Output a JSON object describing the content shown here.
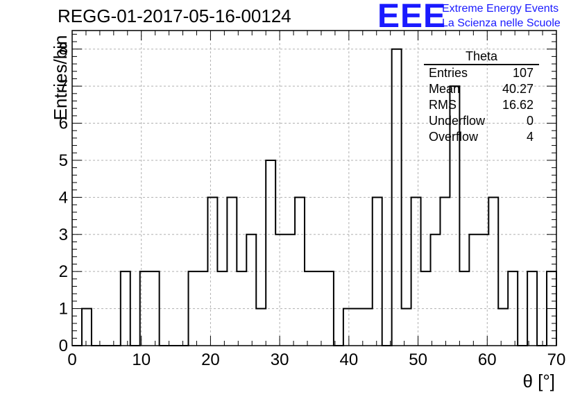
{
  "header": {
    "title": "REGG-01-2017-05-16-00124",
    "logo_text": "EEE",
    "logo_line1": "Extreme Energy Events",
    "logo_line2": "La Scienza nelle Scuole"
  },
  "stats_box": {
    "title": "Theta",
    "rows": [
      {
        "label": "Entries",
        "value": "107"
      },
      {
        "label": "Mean",
        "value": "40.27"
      },
      {
        "label": "RMS",
        "value": "16.62"
      },
      {
        "label": "Underflow",
        "value": "0"
      },
      {
        "label": "Overflow",
        "value": "4"
      }
    ]
  },
  "colors": {
    "line": "#000000",
    "grid": "#b0b0b0",
    "logo": "#1a1aff"
  },
  "chart_data": {
    "type": "bar",
    "style": "step-histogram",
    "title": "REGG-01-2017-05-16-00124",
    "xlabel": "θ [°]",
    "ylabel": "Entries/bin",
    "xlim": [
      0,
      70
    ],
    "ylim": [
      0,
      8.5
    ],
    "bin_width": 1.4,
    "bin_edges_start": 0,
    "x_ticks": [
      "0",
      "10",
      "20",
      "30",
      "40",
      "50",
      "60",
      "70"
    ],
    "y_ticks": [
      "0",
      "1",
      "2",
      "3",
      "4",
      "5",
      "6",
      "7",
      "8"
    ],
    "grid": true,
    "legend": "top-right stats box",
    "values": [
      0,
      1,
      0,
      0,
      0,
      2,
      0,
      2,
      2,
      0,
      0,
      0,
      2,
      2,
      4,
      2,
      4,
      2,
      3,
      1,
      5,
      3,
      3,
      4,
      2,
      2,
      2,
      0,
      1,
      1,
      1,
      4,
      0,
      8,
      1,
      4,
      2,
      3,
      4,
      7,
      2,
      3,
      3,
      4,
      1,
      2,
      0,
      2,
      0,
      2
    ]
  }
}
